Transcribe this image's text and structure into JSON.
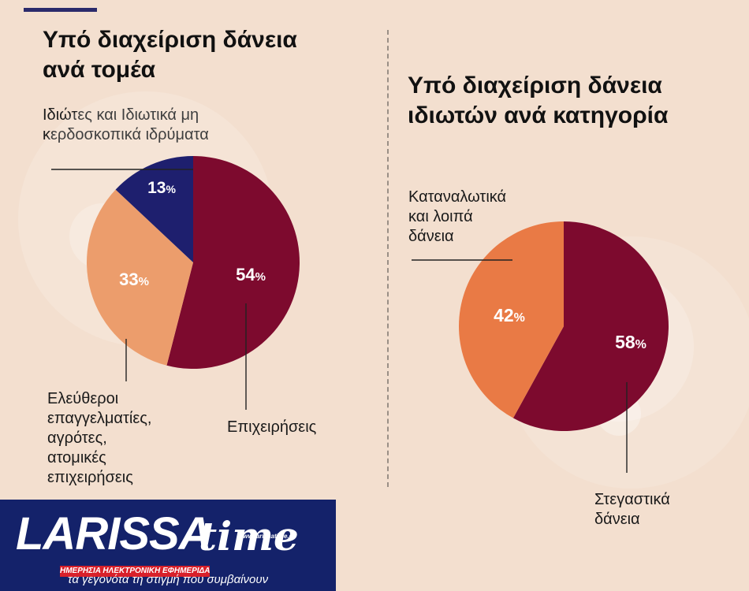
{
  "chart_data": [
    {
      "type": "pie",
      "title": [
        "Υπό διαχείριση δάνεια",
        "ανά τομέα"
      ],
      "categories": [
        "Επιχειρήσεις",
        "Ελεύθεροι επαγγελματίες, αγρότες, ατομικές επιχειρήσεις",
        "Ιδιώτες και Ιδιωτικά μη κερδοσκοπικά ιδρύματα"
      ],
      "label_lines": [
        [
          "Επιχειρήσεις"
        ],
        [
          "Ελεύθεροι",
          "επαγγελματίες,",
          "αγρότες,",
          "ατομικές",
          "επιχειρήσεις"
        ],
        [
          "Ιδιώτες και Ιδιωτικά μη",
          "κερδοσκοπικά ιδρύματα"
        ]
      ],
      "values": [
        54,
        33,
        13
      ],
      "unit": "%",
      "colors": [
        "#7d0a2e",
        "#ec9d6c",
        "#1e1f6e"
      ]
    },
    {
      "type": "pie",
      "title": [
        "Υπό διαχείριση δάνεια",
        "ιδιωτών ανά κατηγορία"
      ],
      "categories": [
        "Στεγαστικά δάνεια",
        "Καταναλωτικά και λοιπά δάνεια"
      ],
      "label_lines": [
        [
          "Στεγαστικά",
          "δάνεια"
        ],
        [
          "Καταναλωτικά",
          "και λοιπά",
          "δάνεια"
        ]
      ],
      "values": [
        58,
        42
      ],
      "unit": "%",
      "colors": [
        "#7d0a2e",
        "#e97a45"
      ]
    }
  ],
  "footer": {
    "logo_left": "LARISSA",
    "logo_right": "time",
    "logo_url": "www.larissatime.gr",
    "logo_strip": "ΗΜΕΡΗΣΙΑ ΗΛΕΚΤΡΟΝΙΚΗ ΕΦΗΜΕΡΙΔΑ",
    "tagline": "τα γεγονότα τη στιγμή που συμβαίνουν",
    "colors": {
      "background": "#14226a",
      "accent": "#d8202a"
    }
  }
}
